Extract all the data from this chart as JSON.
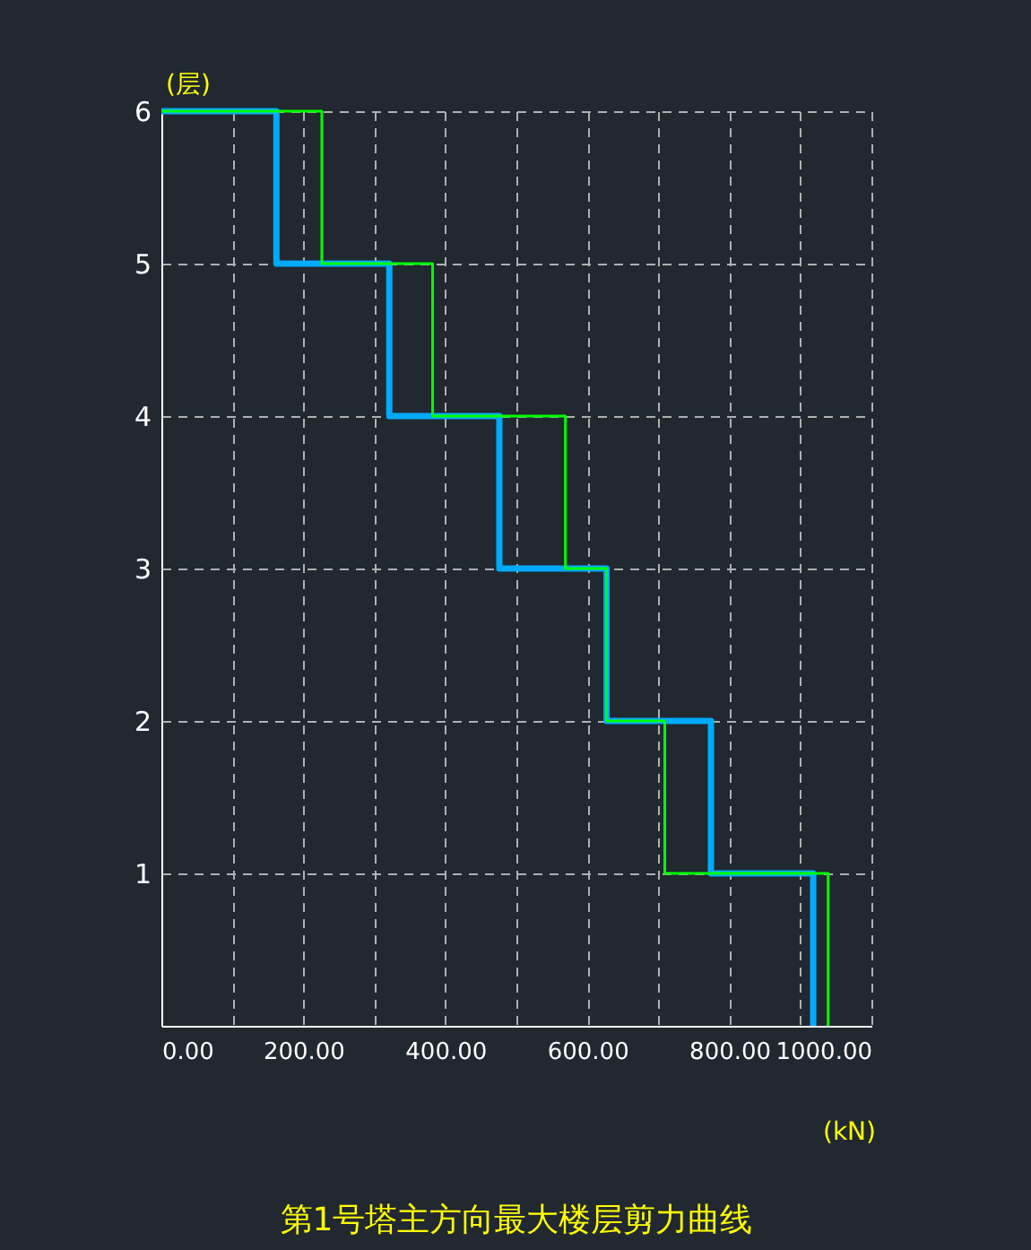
{
  "chart_data": {
    "type": "line",
    "title": "第1号塔主方向最大楼层剪力曲线",
    "xlabel": "(kN)",
    "ylabel": "(层)",
    "xlim": [
      0,
      1000
    ],
    "ylim": [
      0,
      6
    ],
    "xticks": [
      {
        "value": 0,
        "label": "0.00"
      },
      {
        "value": 100,
        "label": null
      },
      {
        "value": 200,
        "label": "200.00"
      },
      {
        "value": 300,
        "label": null
      },
      {
        "value": 400,
        "label": "400.00"
      },
      {
        "value": 500,
        "label": null
      },
      {
        "value": 600,
        "label": "600.00"
      },
      {
        "value": 700,
        "label": null
      },
      {
        "value": 800,
        "label": "800.00"
      },
      {
        "value": 900,
        "label": null
      },
      {
        "value": 1000,
        "label": "1000.00"
      }
    ],
    "yticks": [
      1,
      2,
      3,
      4,
      5,
      6
    ],
    "grid": true,
    "line_style": "solid",
    "marker": "none",
    "series": [
      {
        "color": "#00aaff",
        "x": [
          0,
          162,
          162,
          321,
          321,
          476,
          476,
          627,
          627,
          774,
          774,
          918,
          918
        ],
        "values": [
          6,
          6,
          5,
          5,
          4,
          4,
          3,
          3,
          2,
          2,
          1,
          1,
          0
        ]
      },
      {
        "color": "#00ff00",
        "x": [
          0,
          226,
          226,
          382,
          382,
          569,
          569,
          627,
          627,
          709,
          709,
          939,
          939
        ],
        "values": [
          6,
          6,
          5,
          5,
          4,
          4,
          3,
          3,
          2,
          2,
          1,
          1,
          0
        ]
      }
    ]
  }
}
